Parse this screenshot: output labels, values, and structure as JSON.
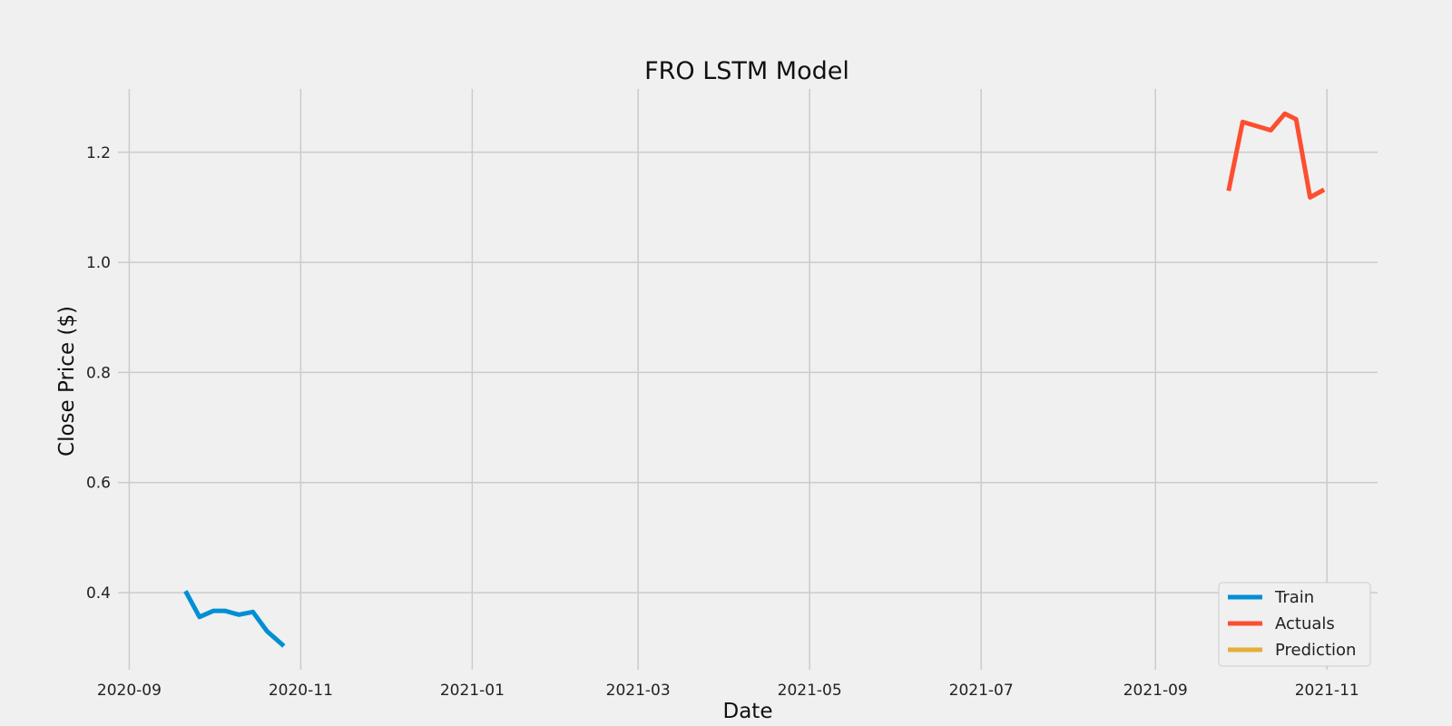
{
  "chart_data": {
    "type": "line",
    "title": "FRO LSTM Model",
    "xlabel": "Date",
    "ylabel": "Close Price ($)",
    "xlim": [
      "2020-08-28",
      "2021-11-19"
    ],
    "ylim": [
      0.26,
      1.315
    ],
    "x_ticks": [
      "2020-09",
      "2020-11",
      "2021-01",
      "2021-03",
      "2021-05",
      "2021-07",
      "2021-09",
      "2021-11"
    ],
    "y_ticks": [
      0.4,
      0.6,
      0.8,
      1.0,
      1.2
    ],
    "y_tick_labels": [
      "0.4",
      "0.6",
      "0.8",
      "1.0",
      "1.2"
    ],
    "grid": true,
    "legend_position": "lower-right",
    "series": [
      {
        "name": "Train",
        "color": "#008fd5",
        "x": [
          "2020-09-21",
          "2020-09-26",
          "2020-10-01",
          "2020-10-05",
          "2020-10-10",
          "2020-10-15",
          "2020-10-20",
          "2020-10-26"
        ],
        "y": [
          0.403,
          0.356,
          0.367,
          0.367,
          0.36,
          0.365,
          0.33,
          0.303
        ]
      },
      {
        "name": "Actuals",
        "color": "#fc4f30",
        "x": [
          "2021-09-27",
          "2021-10-02",
          "2021-10-12",
          "2021-10-17",
          "2021-10-21",
          "2021-10-26",
          "2021-10-31"
        ],
        "y": [
          1.13,
          1.255,
          1.24,
          1.27,
          1.26,
          1.118,
          1.132
        ]
      },
      {
        "name": "Prediction",
        "color": "#e5ae38",
        "x": [],
        "y": []
      }
    ]
  }
}
